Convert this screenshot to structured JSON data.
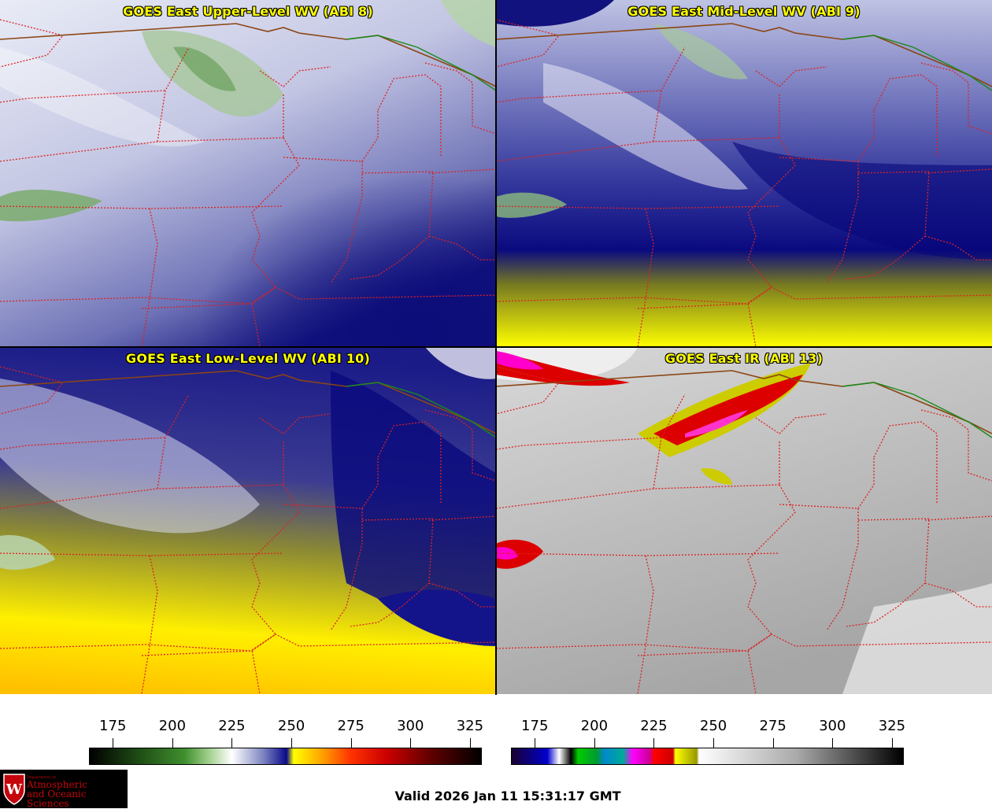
{
  "panels": [
    {
      "title": "GOES East Upper-Level WV (ABI 8)"
    },
    {
      "title": "GOES East Mid-Level WV (ABI 9)"
    },
    {
      "title": "GOES East Low-Level WV (ABI 10)"
    },
    {
      "title": "GOES East IR (ABI 13)"
    }
  ],
  "colorbars": {
    "wv": {
      "ticks": [
        "175",
        "200",
        "225",
        "250",
        "275",
        "300",
        "325"
      ],
      "range": [
        165,
        330
      ],
      "stops": [
        {
          "v": 165,
          "c": "#000000"
        },
        {
          "v": 185,
          "c": "#1e4a14"
        },
        {
          "v": 205,
          "c": "#3f8f2e"
        },
        {
          "v": 215,
          "c": "#9fcf8a"
        },
        {
          "v": 225,
          "c": "#ffffff"
        },
        {
          "v": 238,
          "c": "#7f86c0"
        },
        {
          "v": 248,
          "c": "#0a0a8a"
        },
        {
          "v": 251,
          "c": "#ffff00"
        },
        {
          "v": 262,
          "c": "#ffaa00"
        },
        {
          "v": 275,
          "c": "#ff3300"
        },
        {
          "v": 290,
          "c": "#cc0000"
        },
        {
          "v": 310,
          "c": "#5a0000"
        },
        {
          "v": 330,
          "c": "#000000"
        }
      ]
    },
    "ir": {
      "ticks": [
        "175",
        "200",
        "225",
        "250",
        "275",
        "300",
        "325"
      ],
      "range": [
        165,
        330
      ],
      "stops": [
        {
          "v": 165,
          "c": "#1a0030"
        },
        {
          "v": 180,
          "c": "#0000cc"
        },
        {
          "v": 185,
          "c": "#ffffff"
        },
        {
          "v": 190,
          "c": "#000000"
        },
        {
          "v": 193,
          "c": "#00cc00"
        },
        {
          "v": 201,
          "c": "#009933"
        },
        {
          "v": 204,
          "c": "#0088cc"
        },
        {
          "v": 212,
          "c": "#00aa99"
        },
        {
          "v": 216,
          "c": "#ff00ff"
        },
        {
          "v": 223,
          "c": "#cc0099"
        },
        {
          "v": 225,
          "c": "#ff0000"
        },
        {
          "v": 233,
          "c": "#cc0000"
        },
        {
          "v": 234,
          "c": "#ffff00"
        },
        {
          "v": 243,
          "c": "#999900"
        },
        {
          "v": 244,
          "c": "#ffffff"
        },
        {
          "v": 285,
          "c": "#aaaaaa"
        },
        {
          "v": 330,
          "c": "#000000"
        }
      ]
    }
  },
  "logo": {
    "line1": "Department of",
    "line2": "Atmospheric",
    "line3": "and Oceanic Sciences",
    "letter": "W"
  },
  "valid_time": "Valid 2026 Jan 11 15:31:17 GMT",
  "colors": {
    "title": "#ffff00",
    "state_border": "#dd2222",
    "intl_border": "#8b4513",
    "canada_border": "#1a8a1a"
  }
}
